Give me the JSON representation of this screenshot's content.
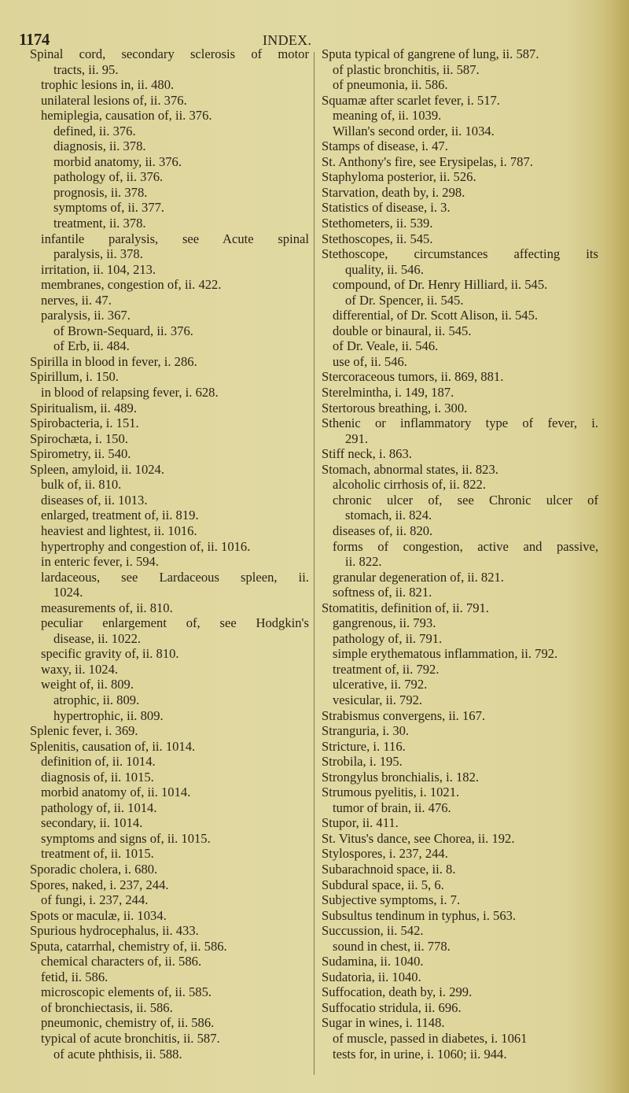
{
  "header": {
    "page_number": "1174",
    "title": "INDEX."
  },
  "left_column": [
    {
      "t": "Spinal cord, secondary sclerosis of motor",
      "i": 0,
      "j": true
    },
    {
      "t": "tracts, ii. 95.",
      "i": 2
    },
    {
      "t": "trophic lesions in, ii. 480.",
      "i": 1
    },
    {
      "t": "unilateral lesions of, ii. 376.",
      "i": 1
    },
    {
      "t": "hemiplegia, causation of, ii. 376.",
      "i": 1
    },
    {
      "t": "defined, ii. 376.",
      "i": 2
    },
    {
      "t": "diagnosis, ii. 378.",
      "i": 2
    },
    {
      "t": "morbid anatomy, ii. 376.",
      "i": 2
    },
    {
      "t": "pathology of, ii. 376.",
      "i": 2
    },
    {
      "t": "prognosis, ii. 378.",
      "i": 2
    },
    {
      "t": "symptoms of, ii. 377.",
      "i": 2
    },
    {
      "t": "treatment, ii. 378.",
      "i": 2
    },
    {
      "t": "infantile paralysis, see Acute spinal",
      "i": 1,
      "j": true
    },
    {
      "t": "paralysis, ii. 378.",
      "i": 2
    },
    {
      "t": "irritation, ii. 104, 213.",
      "i": 1
    },
    {
      "t": "membranes, congestion of, ii. 422.",
      "i": 1
    },
    {
      "t": "nerves, ii. 47.",
      "i": 1
    },
    {
      "t": "paralysis, ii. 367.",
      "i": 1
    },
    {
      "t": "of Brown-Sequard, ii. 376.",
      "i": 2
    },
    {
      "t": "of Erb, ii. 484.",
      "i": 2
    },
    {
      "t": "Spirilla in blood in fever, i. 286.",
      "i": 0
    },
    {
      "t": "Spirillum, i. 150.",
      "i": 0
    },
    {
      "t": "in blood of relapsing fever, i. 628.",
      "i": 1
    },
    {
      "t": "Spiritualism, ii. 489.",
      "i": 0
    },
    {
      "t": "Spirobacteria, i. 151.",
      "i": 0
    },
    {
      "t": "Spirochæta, i. 150.",
      "i": 0
    },
    {
      "t": "Spirometry, ii. 540.",
      "i": 0
    },
    {
      "t": "Spleen, amyloid, ii. 1024.",
      "i": 0
    },
    {
      "t": "bulk of, ii. 810.",
      "i": 1
    },
    {
      "t": "diseases of, ii. 1013.",
      "i": 1
    },
    {
      "t": "enlarged, treatment of, ii. 819.",
      "i": 1
    },
    {
      "t": "heaviest and lightest, ii. 1016.",
      "i": 1
    },
    {
      "t": "hypertrophy and congestion of, ii. 1016.",
      "i": 1
    },
    {
      "t": "in enteric fever, i. 594.",
      "i": 1
    },
    {
      "t": "lardaceous, see Lardaceous spleen, ii.",
      "i": 1,
      "j": true
    },
    {
      "t": "1024.",
      "i": 2
    },
    {
      "t": "measurements of, ii. 810.",
      "i": 1
    },
    {
      "t": "peculiar enlargement of, see Hodgkin's",
      "i": 1,
      "j": true
    },
    {
      "t": "disease, ii. 1022.",
      "i": 2
    },
    {
      "t": "specific gravity of, ii. 810.",
      "i": 1
    },
    {
      "t": "waxy, ii. 1024.",
      "i": 1
    },
    {
      "t": "weight of, ii. 809.",
      "i": 1
    },
    {
      "t": "atrophic, ii. 809.",
      "i": 2
    },
    {
      "t": "hypertrophic, ii. 809.",
      "i": 2
    },
    {
      "t": "Splenic fever, i. 369.",
      "i": 0
    },
    {
      "t": "Splenitis, causation of, ii. 1014.",
      "i": 0
    },
    {
      "t": "definition of, ii. 1014.",
      "i": 1
    },
    {
      "t": "diagnosis of, ii. 1015.",
      "i": 1
    },
    {
      "t": "morbid anatomy of, ii. 1014.",
      "i": 1
    },
    {
      "t": "pathology of, ii. 1014.",
      "i": 1
    },
    {
      "t": "secondary, ii. 1014.",
      "i": 1
    },
    {
      "t": "symptoms and signs of, ii. 1015.",
      "i": 1
    },
    {
      "t": "treatment of, ii. 1015.",
      "i": 1
    },
    {
      "t": "Sporadic cholera, i. 680.",
      "i": 0
    },
    {
      "t": "Spores, naked, i. 237, 244.",
      "i": 0
    },
    {
      "t": "of fungi, i. 237, 244.",
      "i": 1
    },
    {
      "t": "Spots or maculæ, ii. 1034.",
      "i": 0
    },
    {
      "t": "Spurious hydrocephalus, ii. 433.",
      "i": 0
    },
    {
      "t": "Sputa, catarrhal, chemistry of, ii. 586.",
      "i": 0
    },
    {
      "t": "chemical characters of, ii. 586.",
      "i": 1
    },
    {
      "t": "fetid, ii. 586.",
      "i": 1
    },
    {
      "t": "microscopic elements of, ii. 585.",
      "i": 1
    },
    {
      "t": "of bronchiectasis, ii. 586.",
      "i": 1
    },
    {
      "t": "pneumonic, chemistry of, ii. 586.",
      "i": 1
    },
    {
      "t": "typical of acute bronchitis, ii. 587.",
      "i": 1
    },
    {
      "t": "of acute phthisis, ii. 588.",
      "i": 2
    }
  ],
  "right_column": [
    {
      "t": "Sputa typical of gangrene of lung, ii. 587.",
      "i": 0
    },
    {
      "t": "of plastic bronchitis, ii. 587.",
      "i": 1
    },
    {
      "t": "of pneumonia, ii. 586.",
      "i": 1
    },
    {
      "t": "Squamæ after scarlet fever, i. 517.",
      "i": 0
    },
    {
      "t": "meaning of, ii. 1039.",
      "i": 1
    },
    {
      "t": "Willan's second order, ii. 1034.",
      "i": 1
    },
    {
      "t": "Stamps of disease, i. 47.",
      "i": 0
    },
    {
      "t": "St. Anthony's fire, see Erysipelas, i. 787.",
      "i": 0
    },
    {
      "t": "Staphyloma posterior, ii. 526.",
      "i": 0
    },
    {
      "t": "Starvation, death by, i. 298.",
      "i": 0
    },
    {
      "t": "Statistics of disease, i. 3.",
      "i": 0
    },
    {
      "t": "Stethometers, ii. 539.",
      "i": 0
    },
    {
      "t": "Stethoscopes, ii. 545.",
      "i": 0
    },
    {
      "t": "Stethoscope, circumstances affecting its",
      "i": 0,
      "j": true
    },
    {
      "t": "quality, ii. 546.",
      "i": 2
    },
    {
      "t": "compound, of Dr. Henry Hilliard, ii. 545.",
      "i": 1
    },
    {
      "t": "of Dr. Spencer, ii. 545.",
      "i": 2
    },
    {
      "t": "differential, of Dr. Scott Alison, ii. 545.",
      "i": 1
    },
    {
      "t": "double or binaural, ii. 545.",
      "i": 1
    },
    {
      "t": "of Dr. Veale, ii. 546.",
      "i": 1
    },
    {
      "t": "use of, ii. 546.",
      "i": 1
    },
    {
      "t": "Stercoraceous tumors, ii. 869, 881.",
      "i": 0
    },
    {
      "t": "Sterelmintha, i. 149, 187.",
      "i": 0
    },
    {
      "t": "Stertorous breathing, i. 300.",
      "i": 0
    },
    {
      "t": "Sthenic or inflammatory type of fever, i.",
      "i": 0,
      "j": true
    },
    {
      "t": "291.",
      "i": 2
    },
    {
      "t": "Stiff neck, i. 863.",
      "i": 0
    },
    {
      "t": "Stomach, abnormal states, ii. 823.",
      "i": 0
    },
    {
      "t": "alcoholic cirrhosis of, ii. 822.",
      "i": 1
    },
    {
      "t": "chronic ulcer of, see Chronic ulcer of",
      "i": 1,
      "j": true
    },
    {
      "t": "stomach, ii. 824.",
      "i": 2
    },
    {
      "t": "diseases of, ii. 820.",
      "i": 1
    },
    {
      "t": "forms of congestion, active and passive,",
      "i": 1,
      "j": true
    },
    {
      "t": "ii. 822.",
      "i": 2
    },
    {
      "t": "granular degeneration of, ii. 821.",
      "i": 1
    },
    {
      "t": "softness of, ii. 821.",
      "i": 1
    },
    {
      "t": "Stomatitis, definition of, ii. 791.",
      "i": 0
    },
    {
      "t": "gangrenous, ii. 793.",
      "i": 1
    },
    {
      "t": "pathology of, ii. 791.",
      "i": 1
    },
    {
      "t": "simple erythematous inflammation, ii. 792.",
      "i": 1
    },
    {
      "t": "treatment of, ii. 792.",
      "i": 1
    },
    {
      "t": "ulcerative, ii. 792.",
      "i": 1
    },
    {
      "t": "vesicular, ii. 792.",
      "i": 1
    },
    {
      "t": "Strabismus convergens, ii. 167.",
      "i": 0
    },
    {
      "t": "Stranguria, i. 30.",
      "i": 0
    },
    {
      "t": "Stricture, i. 116.",
      "i": 0
    },
    {
      "t": "Strobila, i. 195.",
      "i": 0
    },
    {
      "t": "Strongylus bronchialis, i. 182.",
      "i": 0
    },
    {
      "t": "Strumous pyelitis, i. 1021.",
      "i": 0
    },
    {
      "t": "tumor of brain, ii. 476.",
      "i": 1
    },
    {
      "t": "Stupor, ii. 411.",
      "i": 0
    },
    {
      "t": "St. Vitus's dance, see Chorea, ii. 192.",
      "i": 0
    },
    {
      "t": "Stylospores, i. 237, 244.",
      "i": 0
    },
    {
      "t": "Subarachnoid space, ii. 8.",
      "i": 0
    },
    {
      "t": "Subdural space, ii. 5, 6.",
      "i": 0
    },
    {
      "t": "Subjective symptoms, i. 7.",
      "i": 0
    },
    {
      "t": "Subsultus tendinum in typhus, i. 563.",
      "i": 0
    },
    {
      "t": "Succussion, ii. 542.",
      "i": 0
    },
    {
      "t": "sound in chest, ii. 778.",
      "i": 1
    },
    {
      "t": "Sudamina, ii. 1040.",
      "i": 0
    },
    {
      "t": "Sudatoria, ii. 1040.",
      "i": 0
    },
    {
      "t": "Suffocation, death by, i. 299.",
      "i": 0
    },
    {
      "t": "Suffocatio stridula, ii. 696.",
      "i": 0
    },
    {
      "t": "Sugar in wines, i. 1148.",
      "i": 0
    },
    {
      "t": "of muscle, passed in diabetes, i. 1061",
      "i": 1
    },
    {
      "t": "tests for, in urine, i. 1060; ii. 944.",
      "i": 1
    }
  ]
}
